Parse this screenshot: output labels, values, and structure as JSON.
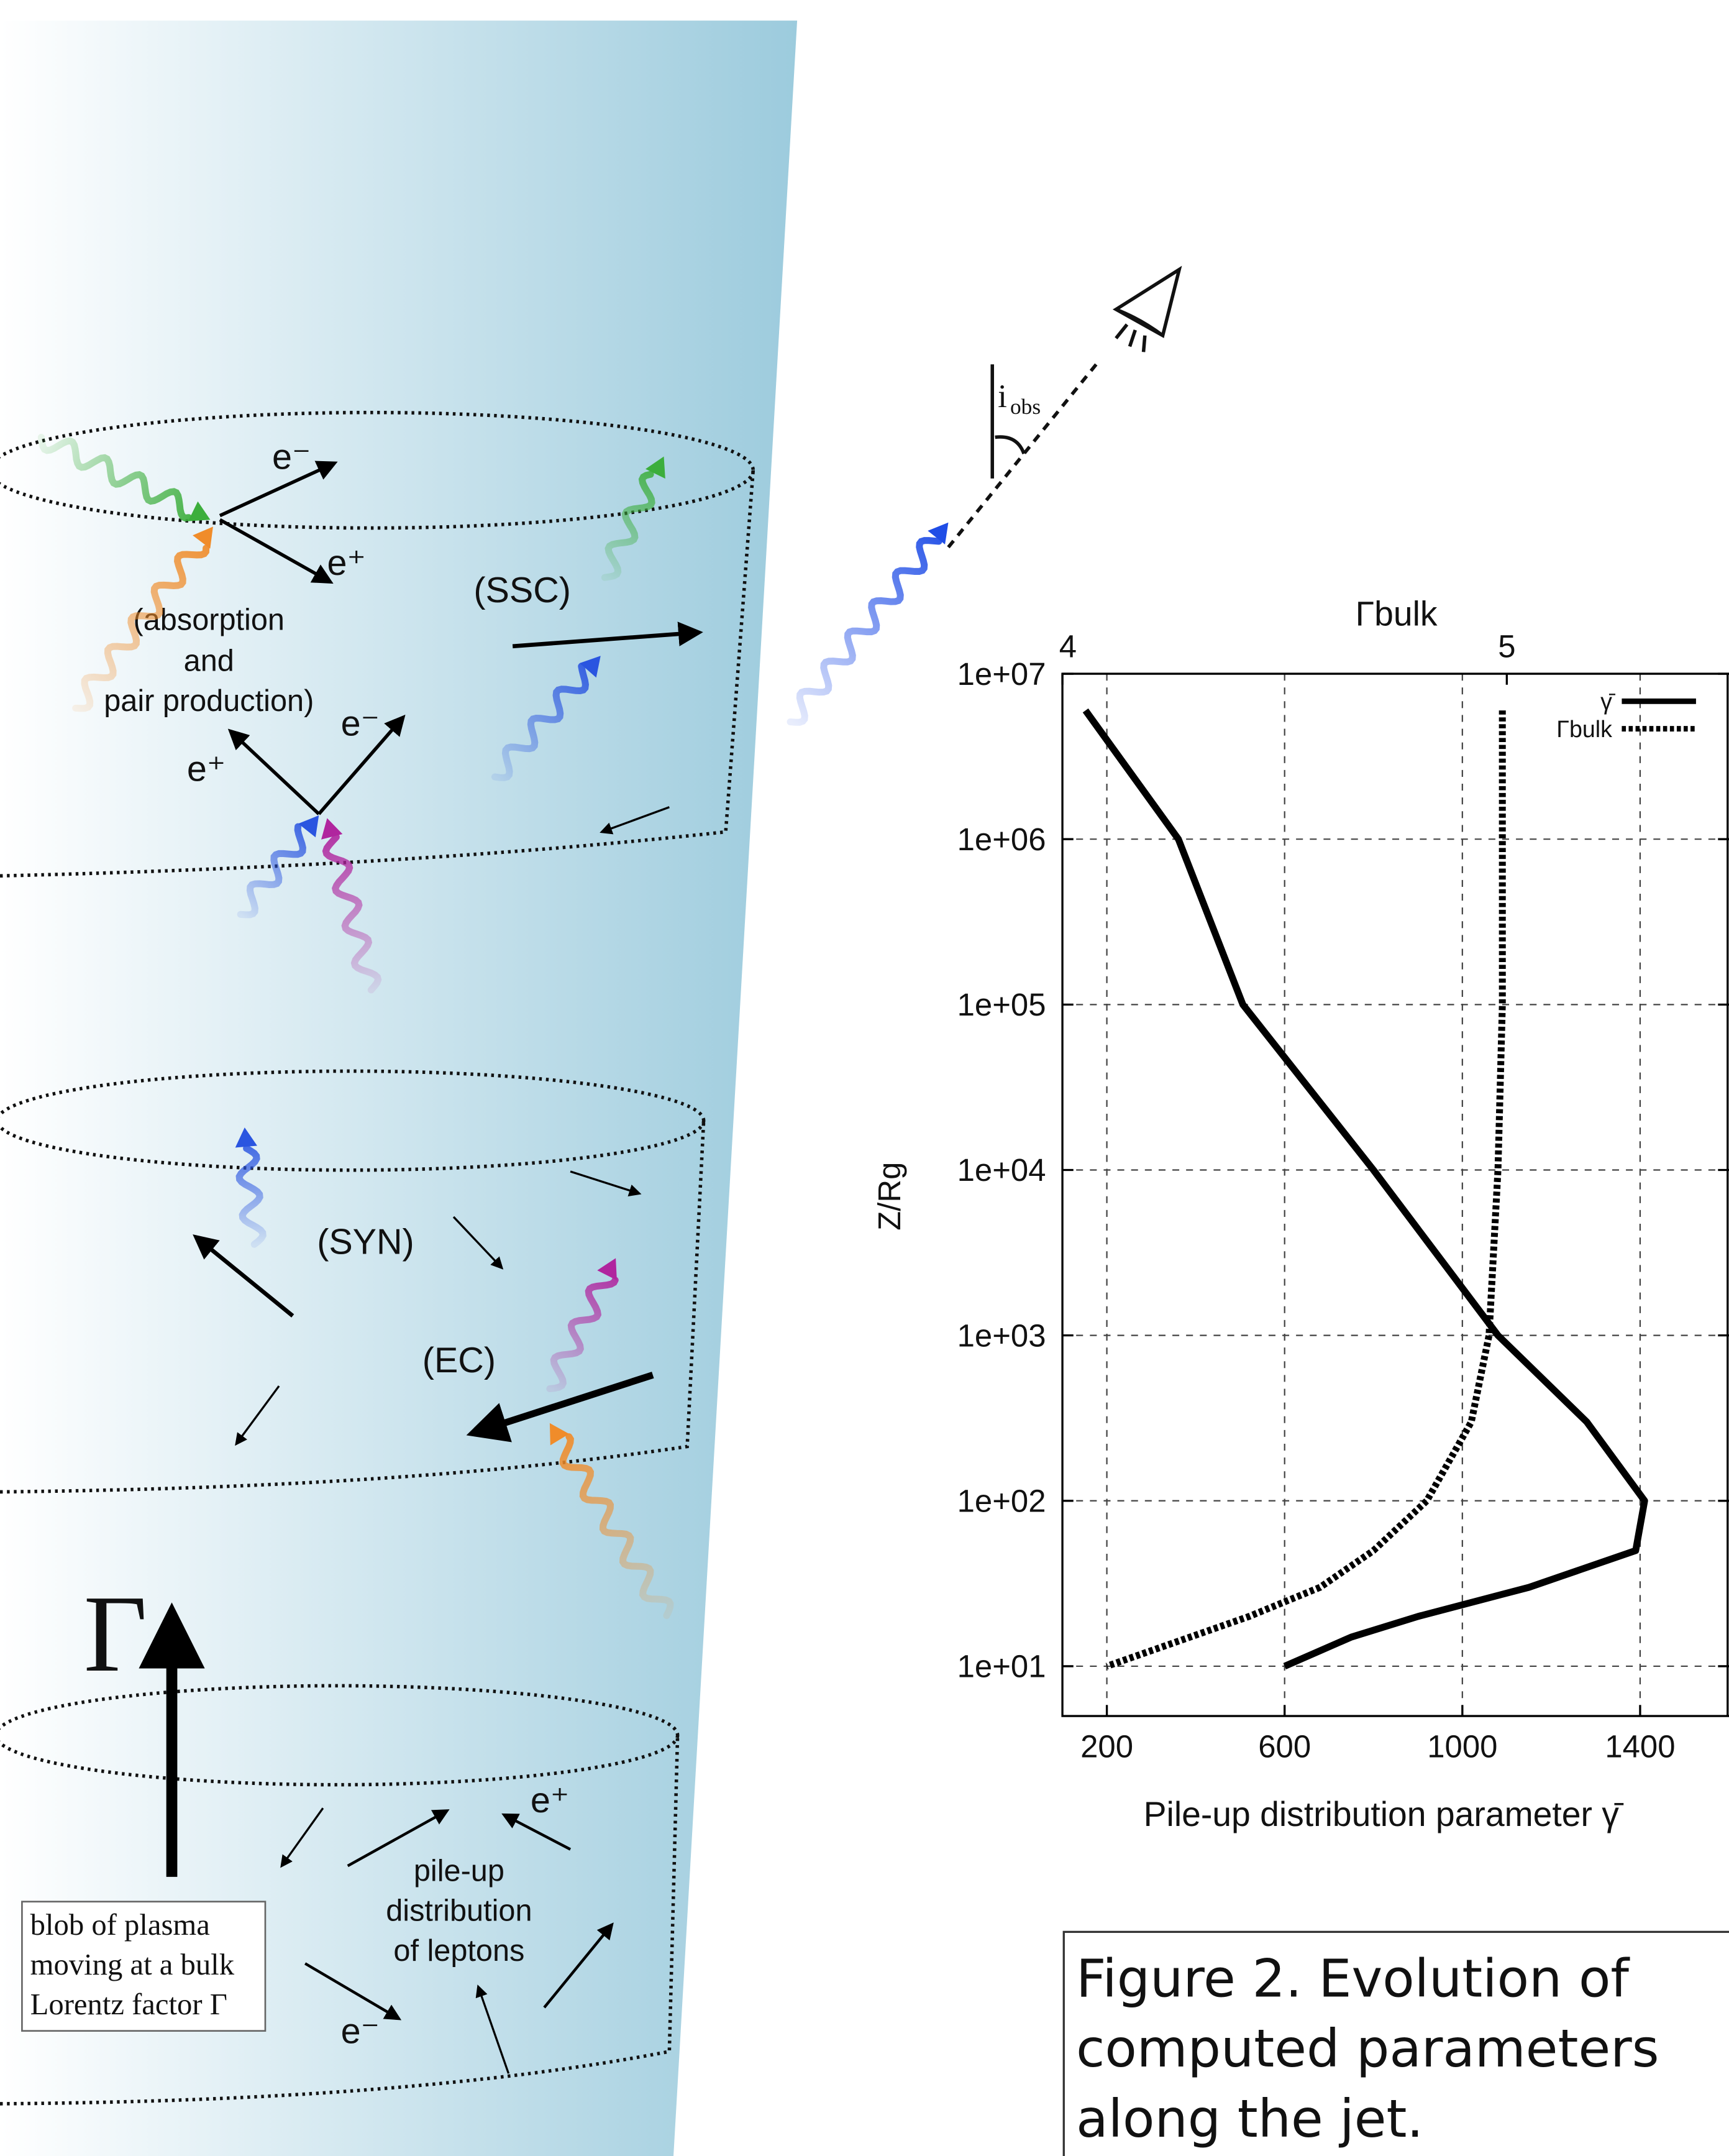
{
  "diagram": {
    "absorption": [
      "(absorption",
      "and",
      "pair production)"
    ],
    "ssc": "(SSC)",
    "syn": "(SYN)",
    "ec": "(EC)",
    "bulk_symbol": "Γ",
    "pileup": [
      "pile-up",
      "distribution",
      "of leptons"
    ],
    "blob": [
      "blob of plasma",
      "moving at a bulk",
      "Lorentz factor Γ"
    ],
    "particles": [
      "e⁻",
      "e⁺",
      "e⁻",
      "e⁺",
      "e⁺",
      "e⁻"
    ],
    "observer_angle": {
      "symbol": "i",
      "subscript": "obs"
    }
  },
  "chart_data": {
    "type": "line",
    "x_label": "Pile-up distribution parameter  γ̄",
    "x2_label": "Γbulk",
    "y_label": "Z/Rg",
    "xlim": [
      100,
      1600
    ],
    "xticks": [
      200,
      600,
      1000,
      1400
    ],
    "x2lim": [
      4,
      5.5
    ],
    "x2ticks": [
      4,
      5
    ],
    "ylim": [
      5,
      10000000
    ],
    "yscale": "log",
    "yticks": [
      {
        "value": 10,
        "label": "1e+01"
      },
      {
        "value": 100,
        "label": "1e+02"
      },
      {
        "value": 1000,
        "label": "1e+03"
      },
      {
        "value": 10000,
        "label": "1e+04"
      },
      {
        "value": 100000,
        "label": "1e+05"
      },
      {
        "value": 1000000,
        "label": "1e+06"
      },
      {
        "value": 10000000,
        "label": "1e+07"
      }
    ],
    "grid": true,
    "legend": "upper right",
    "series": [
      {
        "name": "γ̄",
        "color": "#000000",
        "dash": "solid",
        "x": [
          152,
          361,
          506,
          800,
          1080,
          1280,
          1410,
          1390,
          1150,
          900,
          750,
          600
        ],
        "values": [
          6000000,
          1000000,
          100000,
          10000,
          1000,
          300,
          100,
          50,
          30,
          20,
          15,
          10
        ]
      },
      {
        "name": "Γbulk",
        "color": "#000000",
        "dash": "dotted",
        "axis": "x2",
        "x": [
          4.99,
          4.99,
          4.98,
          4.96,
          4.92,
          4.82,
          4.7,
          4.58,
          4.42,
          4.1
        ],
        "values": [
          6000000,
          100000,
          10000,
          1000,
          300,
          100,
          50,
          30,
          20,
          10
        ]
      }
    ]
  },
  "caption": [
    "Figure 2. Evolution of",
    "computed parameters",
    "along the jet."
  ]
}
